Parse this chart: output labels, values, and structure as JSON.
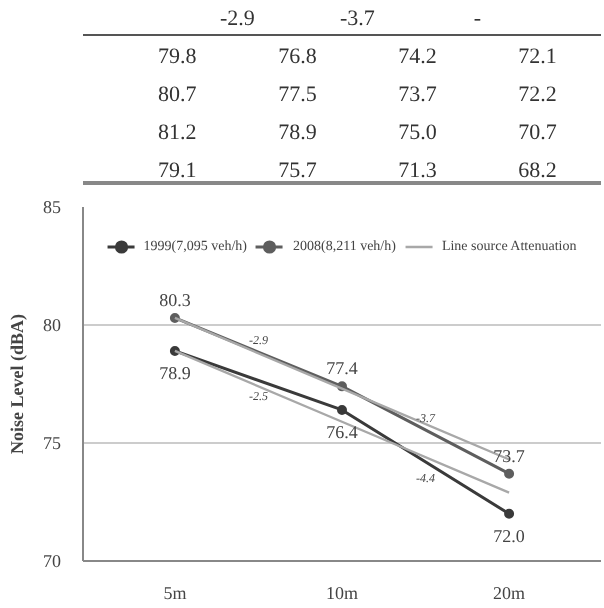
{
  "chart_data": [
    {
      "type": "other",
      "annotations": [
        "-2.9",
        "-3.7",
        "-",
        "79.8",
        "76.8",
        "74.2",
        "72.1",
        "80.7",
        "77.5",
        "73.7",
        "72.2",
        "81.2",
        "78.9",
        "75.0",
        "70.7",
        "79.1",
        "75.7",
        "71.3",
        "68.2"
      ]
    },
    {
      "type": "line",
      "ylabel": "Noise Level (dBA)",
      "categories": [
        "5m",
        "10m",
        "20m"
      ],
      "series": [
        {
          "name": "1999(7,095 veh/h)",
          "color": "#3a3a3a",
          "values": [
            78.9,
            76.4,
            72.0
          ],
          "value_labels": [
            "78.9",
            "76.4",
            "72.0"
          ]
        },
        {
          "name": "2008(8,211 veh/h)",
          "color": "#5e5e5e",
          "values": [
            80.3,
            77.4,
            73.7
          ],
          "value_labels": [
            "80.3",
            "77.4",
            "73.7"
          ]
        },
        {
          "name": "Line source Attenuation",
          "color": "#a8a8a8",
          "values": [
            80.3,
            77.3,
            74.3
          ],
          "marker": "none"
        },
        {
          "color": "#a8a8a8",
          "values": [
            78.9,
            75.9,
            72.9
          ],
          "marker": "none"
        }
      ],
      "annotations": [
        "-2.9",
        "-2.5",
        "-3.7",
        "-4.4"
      ],
      "ylim": [
        70,
        85
      ],
      "yticks": [
        70,
        75,
        80,
        85
      ],
      "grid": "y",
      "legend": "top",
      "marker": "circle"
    }
  ]
}
